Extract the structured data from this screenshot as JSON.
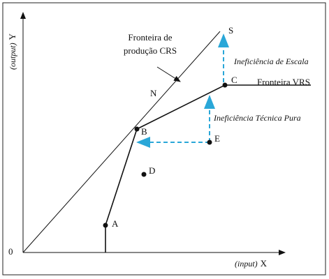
{
  "axes": {
    "y_label": "Y",
    "y_unit": "(output)",
    "x_label": "X",
    "x_unit": "(input)",
    "origin": "0"
  },
  "frontiers": {
    "crs_line1": "Fronteira de",
    "crs_line2": "produção CRS",
    "vrs": "Fronteira VRS"
  },
  "points": {
    "s": "S",
    "n": "N",
    "c": "C",
    "b": "B",
    "e": "E",
    "d": "D",
    "a": "A"
  },
  "annotations": {
    "scale": "Ineficiência de Escala",
    "technical": "Ineficiência Técnica Pura"
  }
}
